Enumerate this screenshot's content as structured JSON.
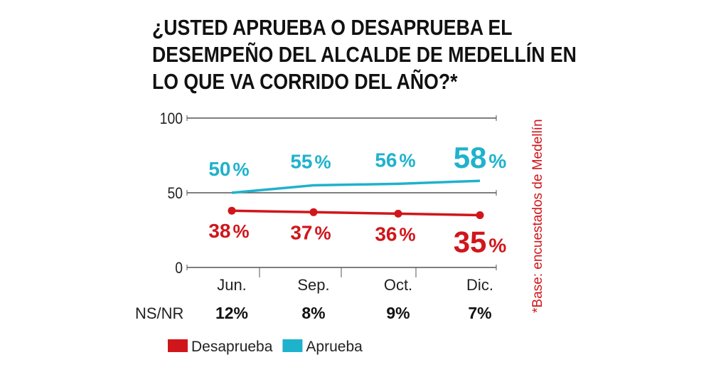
{
  "chart_data": {
    "type": "line",
    "title_lines": [
      "¿USTED APRUEBA O DESAPRUEBA EL",
      "DESEMPEÑO DEL ALCALDE DE MEDELLÍN EN",
      "LO QUE VA CORRIDO DEL AÑO?*"
    ],
    "categories": [
      "Jun.",
      "Sep.",
      "Oct.",
      "Dic."
    ],
    "ylim": [
      0,
      100
    ],
    "yticks": [
      "0",
      "50",
      "100"
    ],
    "grid": true,
    "series": [
      {
        "name": "Desaprueba",
        "color": "#d0161b",
        "values": [
          38,
          37,
          36,
          35
        ],
        "labels": [
          "38",
          "37",
          "36",
          "35"
        ],
        "markers": true
      },
      {
        "name": "Aprueba",
        "color": "#1fb2cc",
        "values": [
          50,
          55,
          56,
          58
        ],
        "labels": [
          "50",
          "55",
          "56",
          "58"
        ],
        "markers": false
      }
    ],
    "percent_sign": "%",
    "nsnr": {
      "label": "NS/NR",
      "values": [
        "12%",
        "8%",
        "9%",
        "7%"
      ]
    },
    "legend_placement": "bottom-left",
    "note": "*Base: encuestados de Medellín"
  }
}
